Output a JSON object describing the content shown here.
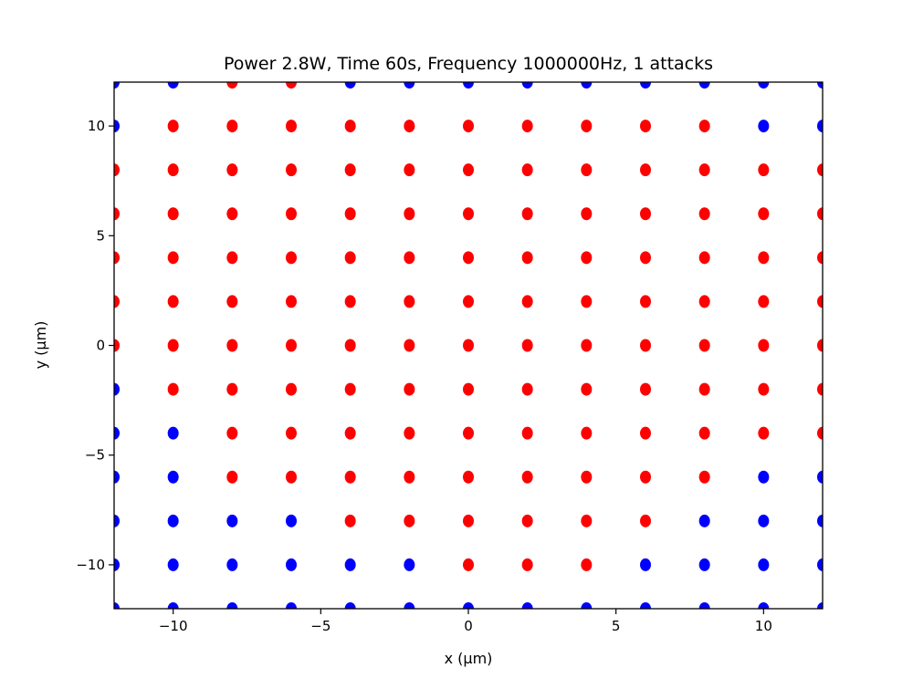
{
  "chart_data": {
    "type": "scatter",
    "title": "Power 2.8W, Time 60s, Frequency 1000000Hz, 1 attacks",
    "xlabel": "x (µm)",
    "ylabel": "y (µm)",
    "xlim": [
      -12,
      12
    ],
    "ylim": [
      -12,
      12
    ],
    "xticks": [
      -10,
      -5,
      0,
      5,
      10
    ],
    "yticks": [
      -10,
      -5,
      0,
      5,
      10
    ],
    "xtick_labels": [
      "−10",
      "−5",
      "0",
      "5",
      "10"
    ],
    "ytick_labels": [
      "−10",
      "−5",
      "0",
      "5",
      "10"
    ],
    "grid": false,
    "series": [
      {
        "color": "#ff0000",
        "rows": [
          {
            "y": 12,
            "x": [
              -8,
              -6
            ]
          },
          {
            "y": 10,
            "x": [
              -10,
              -8,
              -6,
              -4,
              -2,
              0,
              2,
              4,
              6,
              8
            ]
          },
          {
            "y": 8,
            "x": [
              -12,
              -10,
              -8,
              -6,
              -4,
              -2,
              0,
              2,
              4,
              6,
              8,
              10,
              12
            ]
          },
          {
            "y": 6,
            "x": [
              -12,
              -10,
              -8,
              -6,
              -4,
              -2,
              0,
              2,
              4,
              6,
              8,
              10,
              12
            ]
          },
          {
            "y": 4,
            "x": [
              -12,
              -10,
              -8,
              -6,
              -4,
              -2,
              0,
              2,
              4,
              6,
              8,
              10,
              12
            ]
          },
          {
            "y": 2,
            "x": [
              -12,
              -10,
              -8,
              -6,
              -4,
              -2,
              0,
              2,
              4,
              6,
              8,
              10,
              12
            ]
          },
          {
            "y": 0,
            "x": [
              -12,
              -10,
              -8,
              -6,
              -4,
              -2,
              0,
              2,
              4,
              6,
              8,
              10,
              12
            ]
          },
          {
            "y": -2,
            "x": [
              -10,
              -8,
              -6,
              -4,
              -2,
              0,
              2,
              4,
              6,
              8,
              10,
              12
            ]
          },
          {
            "y": -4,
            "x": [
              -8,
              -6,
              -4,
              -2,
              0,
              2,
              4,
              6,
              8,
              10,
              12
            ]
          },
          {
            "y": -6,
            "x": [
              -8,
              -6,
              -4,
              -2,
              0,
              2,
              4,
              6,
              8
            ]
          },
          {
            "y": -8,
            "x": [
              -4,
              -2,
              0,
              2,
              4,
              6
            ]
          },
          {
            "y": -10,
            "x": [
              0,
              2,
              4
            ]
          }
        ]
      },
      {
        "color": "#0000ff",
        "rows": [
          {
            "y": 12,
            "x": [
              -12,
              -10,
              -4,
              -2,
              0,
              2,
              4,
              6,
              8,
              10,
              12
            ]
          },
          {
            "y": 10,
            "x": [
              -12,
              10,
              12
            ]
          },
          {
            "y": -2,
            "x": [
              -12
            ]
          },
          {
            "y": -4,
            "x": [
              -12,
              -10
            ]
          },
          {
            "y": -6,
            "x": [
              -12,
              -10,
              10,
              12
            ]
          },
          {
            "y": -8,
            "x": [
              -12,
              -10,
              -8,
              -6,
              8,
              10,
              12
            ]
          },
          {
            "y": -10,
            "x": [
              -12,
              -10,
              -8,
              -6,
              -4,
              -2,
              6,
              8,
              10,
              12
            ]
          },
          {
            "y": -12,
            "x": [
              -12,
              -10,
              -8,
              -6,
              -4,
              -2,
              0,
              2,
              4,
              6,
              8,
              10,
              12
            ]
          }
        ]
      }
    ]
  }
}
